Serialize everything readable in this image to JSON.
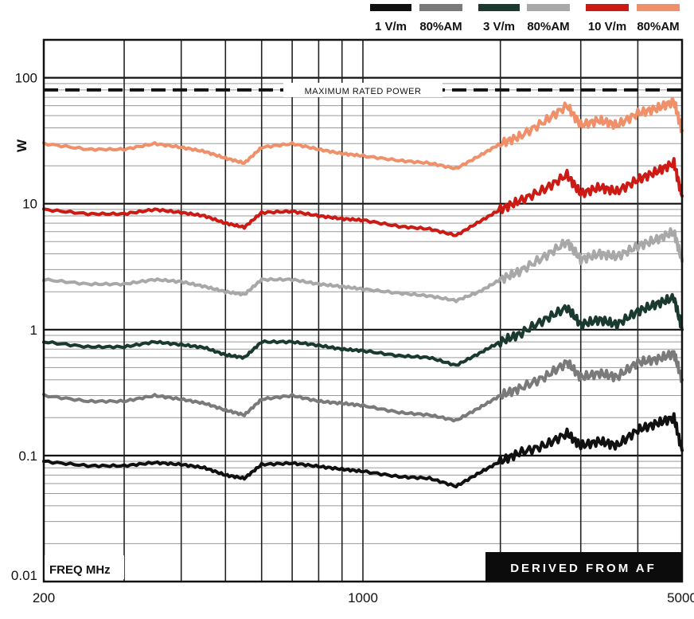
{
  "chart_data": {
    "type": "line",
    "x_scale": "log",
    "y_scale": "log",
    "xlim": [
      200,
      5000
    ],
    "ylim": [
      0.01,
      200
    ],
    "x_ticks": [
      {
        "value": 200,
        "label": "200"
      },
      {
        "value": 1000,
        "label": "1000"
      },
      {
        "value": 5000,
        "label": "5000"
      }
    ],
    "y_ticks": [
      {
        "value": 100,
        "label": "100"
      },
      {
        "value": 10,
        "label": "10"
      },
      {
        "value": 1,
        "label": "1"
      },
      {
        "value": 0.1,
        "label": "0.1"
      },
      {
        "value": 0.01,
        "label": "0.01"
      }
    ],
    "ylabel": "W",
    "xlabel": "FREQ MHz",
    "grid": true,
    "reference_line": {
      "value": 80,
      "label": "MAXIMUM RATED POWER",
      "color": "#111111"
    },
    "footer_badge": "DERIVED FROM AF",
    "legend": {
      "position": "top-right",
      "entries": [
        {
          "label": "1 V/m",
          "color": "#111111"
        },
        {
          "label": "80%AM",
          "color": "#7a7a7a"
        },
        {
          "label": "3 V/m",
          "color": "#1a3a30"
        },
        {
          "label": "80%AM",
          "color": "#a8a8a8"
        },
        {
          "label": "10 V/m",
          "color": "#cc1a14"
        },
        {
          "label": "80%AM",
          "color": "#f0906a"
        }
      ]
    },
    "x": [
      200,
      250,
      300,
      350,
      400,
      450,
      500,
      550,
      600,
      700,
      800,
      900,
      1000,
      1200,
      1400,
      1600,
      1800,
      2000,
      2200,
      2500,
      2800,
      3000,
      3300,
      3600,
      4000,
      4400,
      4800,
      5000
    ],
    "series": [
      {
        "name": "1 V/m",
        "color": "#111111",
        "values": [
          0.09,
          0.083,
          0.083,
          0.088,
          0.085,
          0.08,
          0.07,
          0.066,
          0.085,
          0.087,
          0.082,
          0.078,
          0.075,
          0.068,
          0.066,
          0.057,
          0.073,
          0.09,
          0.105,
          0.12,
          0.15,
          0.12,
          0.13,
          0.12,
          0.16,
          0.18,
          0.2,
          0.11
        ]
      },
      {
        "name": "80%AM",
        "color": "#7a7a7a",
        "values": [
          0.3,
          0.27,
          0.27,
          0.3,
          0.28,
          0.26,
          0.23,
          0.21,
          0.28,
          0.3,
          0.27,
          0.26,
          0.25,
          0.22,
          0.21,
          0.19,
          0.24,
          0.3,
          0.34,
          0.42,
          0.55,
          0.42,
          0.45,
          0.42,
          0.55,
          0.58,
          0.65,
          0.4
        ]
      },
      {
        "name": "3 V/m",
        "color": "#1a3a30",
        "values": [
          0.8,
          0.73,
          0.73,
          0.8,
          0.76,
          0.72,
          0.63,
          0.6,
          0.8,
          0.8,
          0.75,
          0.7,
          0.68,
          0.62,
          0.6,
          0.52,
          0.65,
          0.8,
          0.92,
          1.2,
          1.5,
          1.1,
          1.2,
          1.1,
          1.4,
          1.6,
          1.8,
          1.0
        ]
      },
      {
        "name": "80%AM",
        "color": "#a8a8a8",
        "values": [
          2.5,
          2.3,
          2.3,
          2.5,
          2.4,
          2.2,
          2.0,
          1.9,
          2.5,
          2.5,
          2.3,
          2.2,
          2.1,
          1.95,
          1.85,
          1.7,
          2.0,
          2.5,
          2.9,
          3.8,
          5.0,
          3.6,
          4.0,
          3.8,
          4.6,
          5.2,
          6.0,
          3.5
        ]
      },
      {
        "name": "10 V/m",
        "color": "#cc1a14",
        "values": [
          9.0,
          8.3,
          8.3,
          9.0,
          8.5,
          8.0,
          7.0,
          6.5,
          8.5,
          8.7,
          8.0,
          7.6,
          7.4,
          6.6,
          6.3,
          5.6,
          7.2,
          9.0,
          10.5,
          13.0,
          17.0,
          12.0,
          13.5,
          12.5,
          15.5,
          18.0,
          21.0,
          11.5
        ]
      },
      {
        "name": "80%AM",
        "color": "#f0906a",
        "values": [
          30,
          27,
          27,
          30,
          28,
          26,
          23,
          21,
          28,
          30,
          27,
          25,
          24,
          22,
          21,
          19,
          24,
          30,
          34,
          45,
          60,
          42,
          46,
          42,
          52,
          57,
          65,
          38
        ]
      }
    ]
  }
}
